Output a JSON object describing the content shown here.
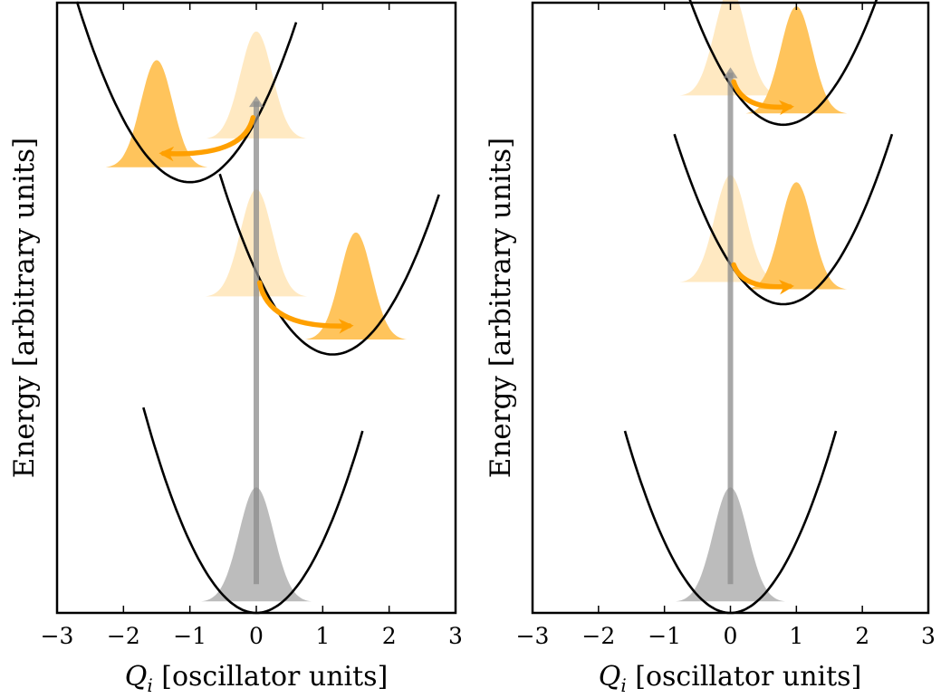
{
  "colors": {
    "curve": "#000000",
    "excited_packet": "#ffc45c",
    "initial_packet": "#ffe9c2",
    "ground_packet": "#bcbcbc",
    "transition_arrow": "#8c8c8c",
    "relaxation_arrow": "#ffa000"
  },
  "panels": [
    {
      "id": "left",
      "ylabel": "Energy [arbitrary units]",
      "xlabel_var": "Q",
      "xlabel_sub": "i",
      "xlabel_rest": " [oscillator units]",
      "xticks": [
        -3,
        -2,
        -1,
        0,
        1,
        2,
        3
      ],
      "xtick_labels": [
        "−3",
        "−2",
        "−1",
        "0",
        "1",
        "2",
        "3"
      ],
      "xlim": [
        -3,
        3
      ],
      "wells": [
        {
          "name": "ground-state-well",
          "center": 0,
          "curvature": 0.99,
          "min_energy": 0,
          "q_range": [
            -1.7,
            1.6
          ]
        },
        {
          "name": "excited-state-1-well",
          "center": 1.15,
          "curvature": 0.87,
          "min_energy": 3.6,
          "q_range": [
            -0.55,
            2.75
          ]
        },
        {
          "name": "excited-state-2-well",
          "center": -1.0,
          "curvature": 0.87,
          "min_energy": 6.0,
          "q_range": [
            -2.7,
            0.6
          ]
        }
      ],
      "packets": [
        {
          "name": "ground-wavepacket",
          "role": "ground",
          "center": 0,
          "base_energy": 0.15,
          "height": 1.6,
          "width": 0.26
        },
        {
          "name": "franck-condon-packet-1",
          "role": "initial",
          "center": 0,
          "base_energy": 4.4,
          "height": 1.5,
          "width": 0.24
        },
        {
          "name": "relaxed-packet-1",
          "role": "excited",
          "center": 1.5,
          "base_energy": 3.8,
          "height": 1.5,
          "width": 0.24
        },
        {
          "name": "franck-condon-packet-2",
          "role": "initial",
          "center": 0,
          "base_energy": 6.6,
          "height": 1.5,
          "width": 0.24
        },
        {
          "name": "relaxed-packet-2",
          "role": "excited",
          "center": -1.5,
          "base_energy": 6.2,
          "height": 1.5,
          "width": 0.24
        }
      ],
      "transition": {
        "q": 0,
        "from_energy": 0.4,
        "to_energy": 7.2
      },
      "relaxation_arrows": [
        {
          "name": "relaxation-arrow-1",
          "from": [
            0.05,
            4.6
          ],
          "to": [
            1.4,
            4.0
          ]
        },
        {
          "name": "relaxation-arrow-2",
          "from": [
            -0.05,
            6.9
          ],
          "to": [
            -1.4,
            6.4
          ]
        }
      ]
    },
    {
      "id": "right",
      "ylabel": "Energy [arbitrary units]",
      "xlabel_var": "Q",
      "xlabel_sub": "i",
      "xlabel_rest": " [oscillator units]",
      "xticks": [
        -3,
        -2,
        -1,
        0,
        1,
        2,
        3
      ],
      "xtick_labels": [
        "−3",
        "−2",
        "−1",
        "0",
        "1",
        "2",
        "3"
      ],
      "xlim": [
        -3,
        3
      ],
      "wells": [
        {
          "name": "ground-state-well",
          "center": 0,
          "curvature": 0.99,
          "min_energy": 0,
          "q_range": [
            -1.6,
            1.6
          ]
        },
        {
          "name": "excited-state-1-well",
          "center": 0.8,
          "curvature": 0.87,
          "min_energy": 4.3,
          "q_range": [
            -0.85,
            2.45
          ]
        },
        {
          "name": "excited-state-2-well",
          "center": 0.8,
          "curvature": 0.87,
          "min_energy": 6.8,
          "q_range": [
            -0.85,
            2.45
          ]
        }
      ],
      "packets": [
        {
          "name": "ground-wavepacket",
          "role": "ground",
          "center": 0,
          "base_energy": 0.15,
          "height": 1.6,
          "width": 0.26
        },
        {
          "name": "franck-condon-packet-1",
          "role": "initial",
          "center": 0,
          "base_energy": 4.6,
          "height": 1.5,
          "width": 0.24
        },
        {
          "name": "relaxed-packet-1",
          "role": "excited",
          "center": 1.0,
          "base_energy": 4.5,
          "height": 1.5,
          "width": 0.24
        },
        {
          "name": "franck-condon-packet-2",
          "role": "initial",
          "center": 0,
          "base_energy": 7.2,
          "height": 1.5,
          "width": 0.24
        },
        {
          "name": "relaxed-packet-2",
          "role": "excited",
          "center": 1.0,
          "base_energy": 6.95,
          "height": 1.5,
          "width": 0.24
        }
      ],
      "transition": {
        "q": 0,
        "from_energy": 0.4,
        "to_energy": 7.6
      },
      "relaxation_arrows": [
        {
          "name": "relaxation-arrow-1",
          "from": [
            0.05,
            4.85
          ],
          "to": [
            0.9,
            4.55
          ]
        },
        {
          "name": "relaxation-arrow-2",
          "from": [
            0.05,
            7.4
          ],
          "to": [
            0.9,
            7.05
          ]
        }
      ]
    }
  ]
}
